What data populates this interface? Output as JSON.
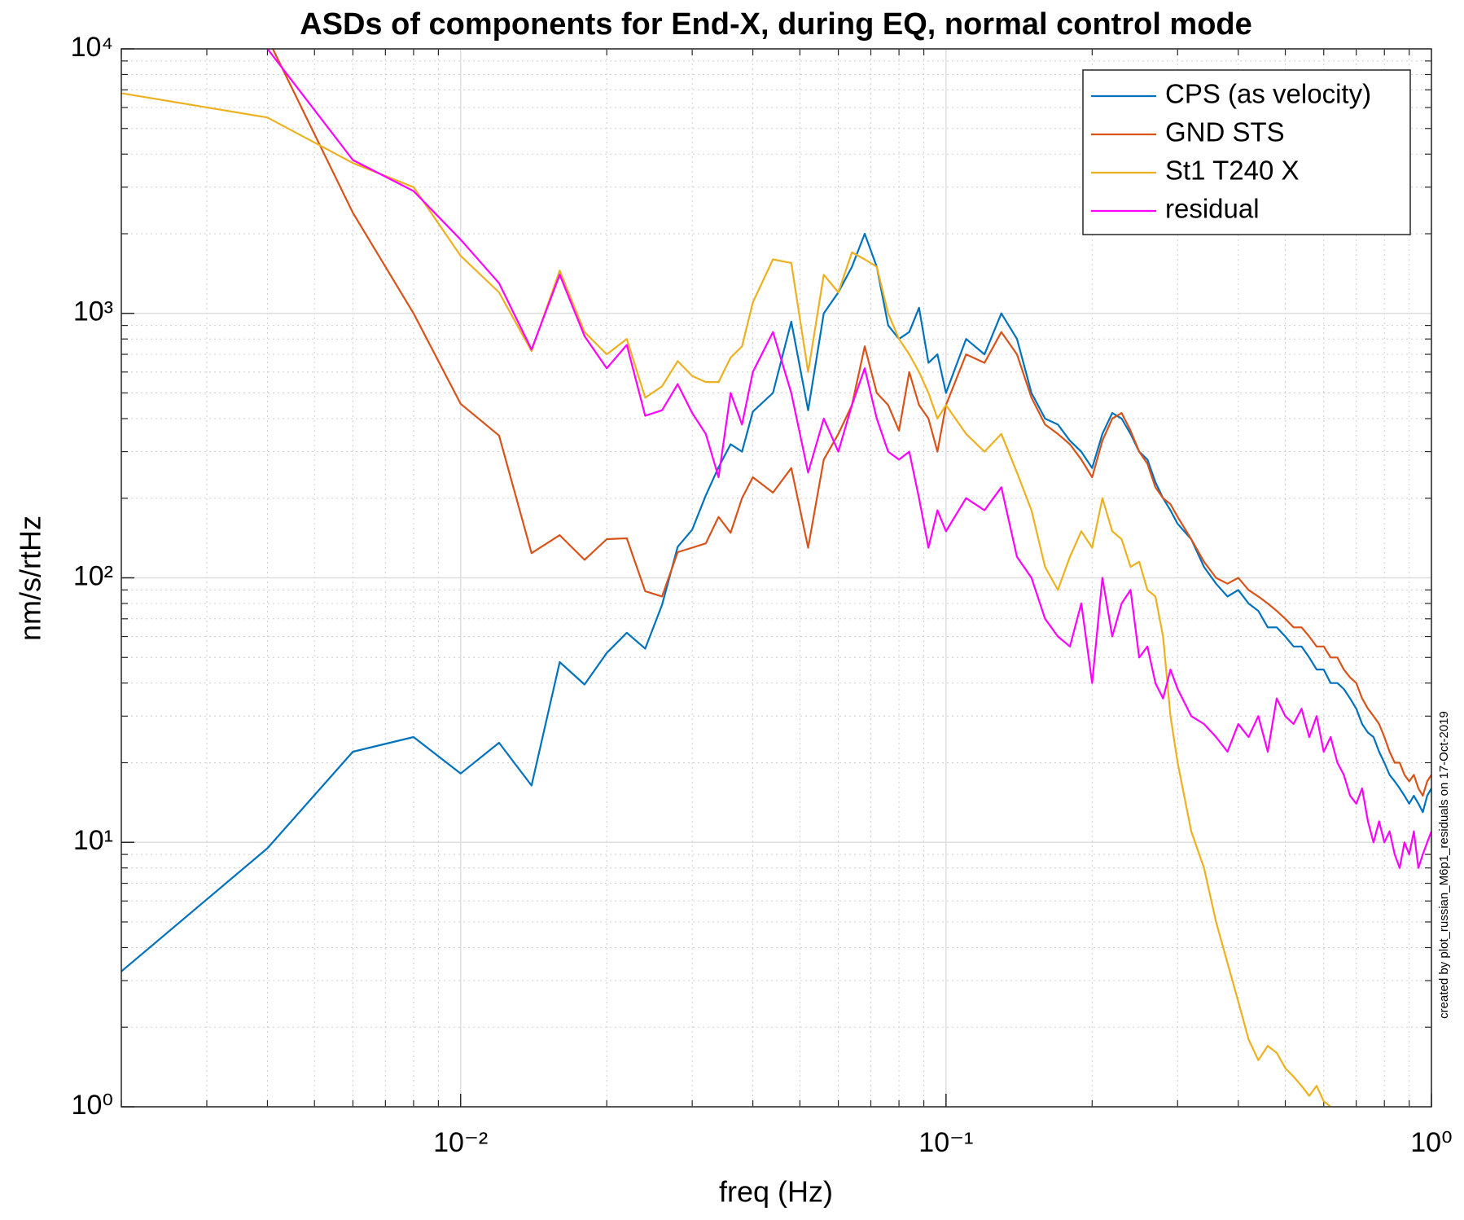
{
  "chart_data": {
    "type": "line",
    "title": "ASDs of components for End-X, during EQ, normal control mode",
    "xlabel": "freq (Hz)",
    "ylabel": "nm/s/rtHz",
    "annotation": "created by plot_russian_M6p1_residuals on 17-Oct-2019",
    "xscale": "log",
    "yscale": "log",
    "grid": true,
    "minor_grid": true,
    "legend": "northeast",
    "xlim": [
      0.002,
      1
    ],
    "ylim": [
      1,
      10000
    ],
    "xticks": [
      {
        "value": 0.01,
        "label": "10⁻²"
      },
      {
        "value": 0.1,
        "label": "10⁻¹"
      },
      {
        "value": 1,
        "label": "10⁰"
      }
    ],
    "yticks": [
      {
        "value": 1,
        "label": "10⁰"
      },
      {
        "value": 10,
        "label": "10¹"
      },
      {
        "value": 100,
        "label": "10²"
      },
      {
        "value": 1000,
        "label": "10³"
      },
      {
        "value": 10000,
        "label": "10⁴"
      }
    ],
    "x": [
      0.002,
      0.004,
      0.006,
      0.008,
      0.01,
      0.012,
      0.014,
      0.016,
      0.018,
      0.02,
      0.022,
      0.024,
      0.026,
      0.028,
      0.03,
      0.032,
      0.034,
      0.036,
      0.038,
      0.04,
      0.044,
      0.048,
      0.052,
      0.056,
      0.06,
      0.064,
      0.068,
      0.072,
      0.076,
      0.08,
      0.084,
      0.088,
      0.092,
      0.096,
      0.1,
      0.11,
      0.12,
      0.13,
      0.14,
      0.15,
      0.16,
      0.17,
      0.18,
      0.19,
      0.2,
      0.21,
      0.22,
      0.23,
      0.24,
      0.25,
      0.26,
      0.27,
      0.28,
      0.29,
      0.3,
      0.32,
      0.34,
      0.36,
      0.38,
      0.4,
      0.42,
      0.44,
      0.46,
      0.48,
      0.5,
      0.52,
      0.54,
      0.56,
      0.58,
      0.6,
      0.62,
      0.64,
      0.66,
      0.68,
      0.7,
      0.72,
      0.74,
      0.76,
      0.78,
      0.8,
      0.82,
      0.84,
      0.86,
      0.88,
      0.9,
      0.92,
      0.94,
      0.96,
      0.98,
      1.0
    ],
    "series": [
      {
        "name": "CPS (as velocity)",
        "color": "#0072BD",
        "values": [
          3.25,
          9.5,
          22,
          25,
          18.2,
          23.8,
          16.4,
          48,
          39.5,
          52,
          62,
          54,
          79,
          131,
          152,
          205,
          262,
          320,
          300,
          425,
          500,
          930,
          430,
          1000,
          1200,
          1500,
          2000,
          1500,
          900,
          800,
          850,
          1050,
          650,
          700,
          500,
          800,
          700,
          1000,
          800,
          500,
          400,
          380,
          330,
          300,
          260,
          350,
          420,
          400,
          350,
          300,
          280,
          230,
          200,
          180,
          160,
          140,
          110,
          95,
          85,
          90,
          80,
          75,
          65,
          65,
          60,
          55,
          55,
          50,
          45,
          45,
          40,
          40,
          38,
          35,
          32,
          28,
          26,
          25,
          22,
          20,
          18,
          17,
          16,
          15,
          14,
          15,
          14,
          13,
          15,
          16
        ]
      },
      {
        "name": "GND STS",
        "color": "#D95319",
        "values": [
          null,
          11000,
          2400,
          1000,
          455,
          345,
          124,
          145,
          117,
          140,
          141,
          89,
          85,
          125,
          130,
          135,
          170,
          148,
          200,
          240,
          210,
          260,
          130,
          280,
          350,
          450,
          750,
          500,
          450,
          360,
          600,
          450,
          400,
          300,
          450,
          700,
          650,
          850,
          700,
          480,
          380,
          350,
          320,
          280,
          240,
          330,
          400,
          420,
          360,
          300,
          270,
          220,
          200,
          190,
          170,
          140,
          115,
          100,
          95,
          100,
          90,
          85,
          80,
          75,
          70,
          65,
          65,
          60,
          55,
          55,
          50,
          50,
          45,
          42,
          40,
          35,
          32,
          30,
          28,
          25,
          22,
          20,
          20,
          18,
          17,
          18,
          16,
          15,
          17,
          18
        ]
      },
      {
        "name": "St1 T240 X",
        "color": "#EDB120",
        "values": [
          6800,
          5500,
          3700,
          3000,
          1650,
          1200,
          720,
          1450,
          850,
          700,
          800,
          480,
          530,
          660,
          580,
          550,
          550,
          680,
          750,
          1100,
          1600,
          1550,
          600,
          1400,
          1200,
          1700,
          1600,
          1500,
          1000,
          800,
          700,
          600,
          500,
          400,
          450,
          350,
          300,
          350,
          250,
          180,
          110,
          90,
          120,
          150,
          130,
          200,
          150,
          140,
          110,
          115,
          90,
          85,
          60,
          30,
          20,
          11,
          8,
          5,
          3.5,
          2.5,
          1.8,
          1.5,
          1.7,
          1.6,
          1.4,
          1.3,
          1.2,
          1.1,
          1.2,
          1.05,
          1.0,
          null,
          null,
          null,
          null,
          null,
          null,
          null,
          null,
          null,
          null,
          null,
          null,
          null,
          null,
          null,
          null,
          null,
          null,
          null
        ]
      },
      {
        "name": "residual",
        "color": "#FF00FF",
        "values": [
          null,
          10000,
          3800,
          2900,
          1900,
          1300,
          730,
          1400,
          820,
          620,
          760,
          410,
          430,
          540,
          420,
          350,
          240,
          500,
          380,
          600,
          850,
          500,
          250,
          400,
          300,
          450,
          620,
          400,
          300,
          280,
          300,
          200,
          130,
          180,
          150,
          200,
          180,
          220,
          120,
          100,
          70,
          60,
          55,
          80,
          40,
          100,
          60,
          80,
          90,
          50,
          55,
          40,
          35,
          45,
          38,
          30,
          28,
          25,
          22,
          28,
          25,
          30,
          22,
          35,
          30,
          28,
          32,
          25,
          30,
          22,
          25,
          20,
          18,
          15,
          14,
          16,
          12,
          10,
          12,
          10,
          11,
          9,
          8,
          10,
          9,
          11,
          8,
          9,
          10,
          11
        ]
      }
    ]
  }
}
